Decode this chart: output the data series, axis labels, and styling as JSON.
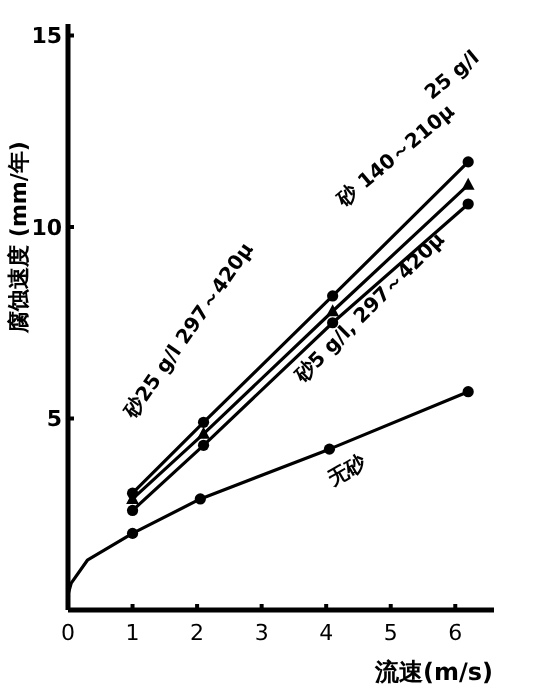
{
  "chart_data": {
    "type": "line",
    "xlabel": "流速(m/s)",
    "ylabel": "腐蚀速度 (mm/年)",
    "xlim": [
      0,
      6.6
    ],
    "ylim": [
      0,
      15.3
    ],
    "xticks": [
      0,
      1,
      2,
      3,
      4,
      5,
      6
    ],
    "yticks": [
      5,
      10,
      15
    ],
    "grid": false,
    "line_style": "solid",
    "series": [
      {
        "color": "#000000",
        "marker": "circle",
        "x": [
          1,
          2.1,
          4.1,
          6.2
        ],
        "values": [
          3.05,
          4.9,
          8.2,
          11.7
        ]
      },
      {
        "color": "#000000",
        "marker": "triangle",
        "x": [
          1,
          2.1,
          4.1,
          6.2
        ],
        "values": [
          2.9,
          4.6,
          7.8,
          11.1
        ]
      },
      {
        "color": "#000000",
        "marker": "circle",
        "x": [
          1,
          2.1,
          4.1,
          6.2
        ],
        "values": [
          2.6,
          4.3,
          7.5,
          10.6
        ]
      },
      {
        "color": "#000000",
        "marker": "circle",
        "x": [
          0,
          0.05,
          0.3,
          1,
          2.05,
          4.05,
          6.2
        ],
        "values": [
          0.4,
          0.7,
          1.3,
          2.0,
          2.9,
          4.2,
          5.7
        ]
      }
    ],
    "annotations": [
      "25 g/l",
      "砂 140～210μ",
      "砂25 g/l  297～420μ",
      "砂5 g/l, 297～420μ",
      "无砂"
    ]
  }
}
